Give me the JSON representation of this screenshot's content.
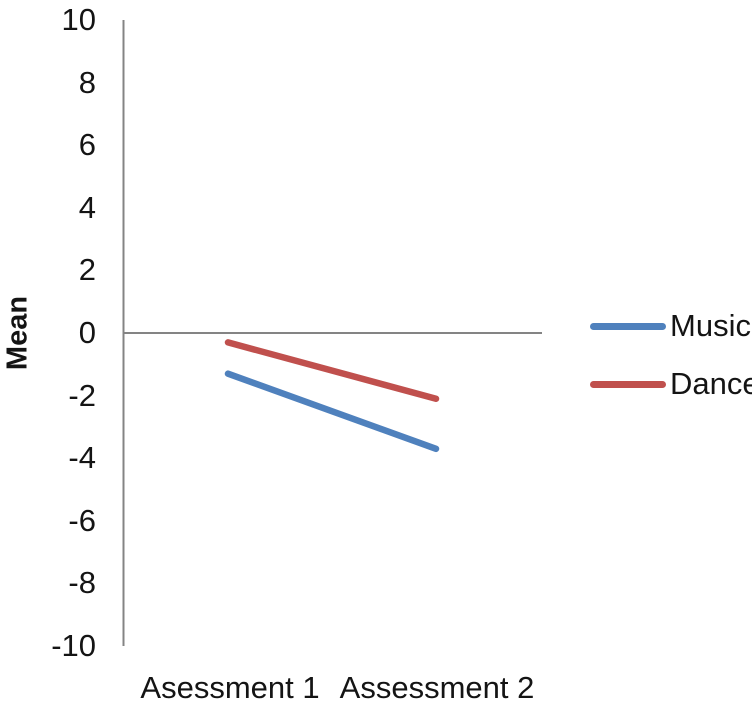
{
  "chart_data": {
    "type": "line",
    "title": "",
    "ylabel": "Mean",
    "xlabel": "",
    "categories": [
      "Asessment 1",
      "Assessment 2"
    ],
    "series": [
      {
        "name": "Music",
        "color": "#4F81BD",
        "values": [
          -1.3,
          -3.7
        ]
      },
      {
        "name": "Dance",
        "color": "#C0504D",
        "values": [
          -0.3,
          -2.1
        ]
      }
    ],
    "ylim": [
      -10,
      10
    ],
    "yticks": [
      10,
      8,
      6,
      4,
      2,
      0,
      -2,
      -4,
      -6,
      -8,
      -10
    ],
    "grid": false,
    "legend_position": "right",
    "axis_color": "#848484",
    "background_color": "#ffffff",
    "text_color": "#141414"
  }
}
